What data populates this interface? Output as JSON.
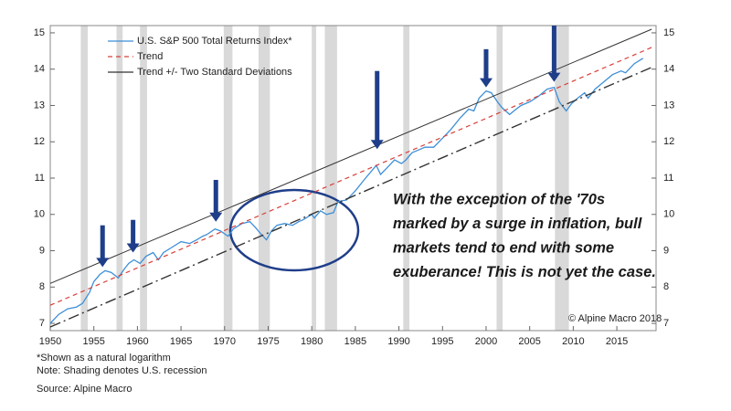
{
  "chart_data": {
    "type": "line",
    "xlim": [
      1950,
      2019.5
    ],
    "ylim": [
      6.8,
      15.2
    ],
    "y2lim": [
      6.8,
      15.2
    ],
    "xticks": [
      1950,
      1955,
      1960,
      1965,
      1970,
      1975,
      1980,
      1985,
      1990,
      1995,
      2000,
      2005,
      2010,
      2015
    ],
    "yticks": [
      7,
      8,
      9,
      10,
      11,
      12,
      13,
      14,
      15
    ],
    "y2ticks": [
      7,
      8,
      9,
      10,
      11,
      12,
      13,
      14,
      15
    ],
    "recessions": [
      [
        1953.5,
        1954.3
      ],
      [
        1957.6,
        1958.3
      ],
      [
        1960.3,
        1961.1
      ],
      [
        1969.9,
        1970.9
      ],
      [
        1973.9,
        1975.2
      ],
      [
        1980.0,
        1980.5
      ],
      [
        1981.5,
        1982.9
      ],
      [
        1990.5,
        1991.2
      ],
      [
        2001.2,
        2001.9
      ],
      [
        2007.9,
        2009.5
      ]
    ],
    "series": [
      {
        "name": "U.S. S&P 500 Total Returns Index*",
        "color": "#3d8fd8",
        "style": "solid",
        "x": [
          1950,
          1951,
          1952,
          1953,
          1953.7,
          1954.5,
          1955,
          1955.7,
          1956.3,
          1957,
          1957.8,
          1958.5,
          1959,
          1959.6,
          1960.3,
          1961,
          1961.8,
          1962.4,
          1963,
          1964,
          1965,
          1966,
          1966.8,
          1967.5,
          1968,
          1968.9,
          1969.5,
          1970.4,
          1971,
          1972,
          1972.9,
          1973.5,
          1974.2,
          1974.8,
          1975.4,
          1976,
          1976.9,
          1977.8,
          1978.5,
          1979,
          1980,
          1980.3,
          1981,
          1981.7,
          1982.5,
          1983,
          1984,
          1985,
          1986,
          1987.4,
          1987.9,
          1988.5,
          1989.5,
          1990.3,
          1990.8,
          1991.5,
          1992,
          1993,
          1994,
          1995,
          1996,
          1997,
          1998,
          1998.6,
          1999.2,
          2000,
          2000.6,
          2001.3,
          2001.8,
          2002.7,
          2003.2,
          2004,
          2005,
          2006,
          2007,
          2007.8,
          2008.4,
          2009.2,
          2009.8,
          2010.5,
          2011.3,
          2011.7,
          2012.5,
          2013.5,
          2014.5,
          2015.5,
          2016,
          2017,
          2018
        ],
        "values": [
          7.0,
          7.25,
          7.4,
          7.45,
          7.55,
          7.85,
          8.15,
          8.35,
          8.45,
          8.4,
          8.25,
          8.5,
          8.65,
          8.75,
          8.65,
          8.85,
          8.95,
          8.75,
          8.95,
          9.1,
          9.25,
          9.2,
          9.3,
          9.4,
          9.45,
          9.6,
          9.55,
          9.4,
          9.6,
          9.75,
          9.8,
          9.65,
          9.45,
          9.3,
          9.55,
          9.7,
          9.75,
          9.7,
          9.8,
          9.85,
          10.0,
          9.9,
          10.1,
          10.0,
          10.05,
          10.35,
          10.4,
          10.65,
          10.95,
          11.35,
          11.1,
          11.25,
          11.5,
          11.4,
          11.5,
          11.7,
          11.75,
          11.85,
          11.85,
          12.1,
          12.35,
          12.65,
          12.9,
          12.85,
          13.2,
          13.4,
          13.35,
          13.1,
          12.95,
          12.75,
          12.85,
          13.0,
          13.1,
          13.25,
          13.45,
          13.5,
          13.1,
          12.85,
          13.05,
          13.2,
          13.35,
          13.2,
          13.45,
          13.65,
          13.85,
          13.95,
          13.9,
          14.15,
          14.3
        ]
      },
      {
        "name": "Trend",
        "color": "#d8403a",
        "style": "dashed",
        "x": [
          1950,
          2019
        ],
        "values": [
          7.5,
          14.6
        ]
      },
      {
        "name": "Trend +/- Two Standard Deviations",
        "color": "#333333",
        "style": "band",
        "x": [
          1950,
          2019
        ],
        "upper": [
          8.1,
          15.1
        ],
        "lower": [
          6.9,
          14.05
        ]
      }
    ],
    "arrows": [
      {
        "x": 1956,
        "from": 9.7,
        "to": 8.55
      },
      {
        "x": 1959.5,
        "from": 9.85,
        "to": 8.95
      },
      {
        "x": 1969,
        "from": 10.95,
        "to": 9.8
      },
      {
        "x": 1987.5,
        "from": 13.95,
        "to": 11.8
      },
      {
        "x": 2000,
        "from": 14.55,
        "to": 13.5
      },
      {
        "x": 2007.8,
        "from": 15.2,
        "to": 13.65
      }
    ],
    "annotation": [
      "With the exception of the '70s",
      "marked by a surge in inflation, bull",
      "markets tend to end with some",
      "exuberance! This is not yet the case."
    ],
    "copyright": "© Alpine Macro 2018",
    "footnotes": [
      "*Shown as a natural logarithm",
      "Note: Shading denotes U.S. recession"
    ],
    "source": "Source: Alpine Macro"
  }
}
